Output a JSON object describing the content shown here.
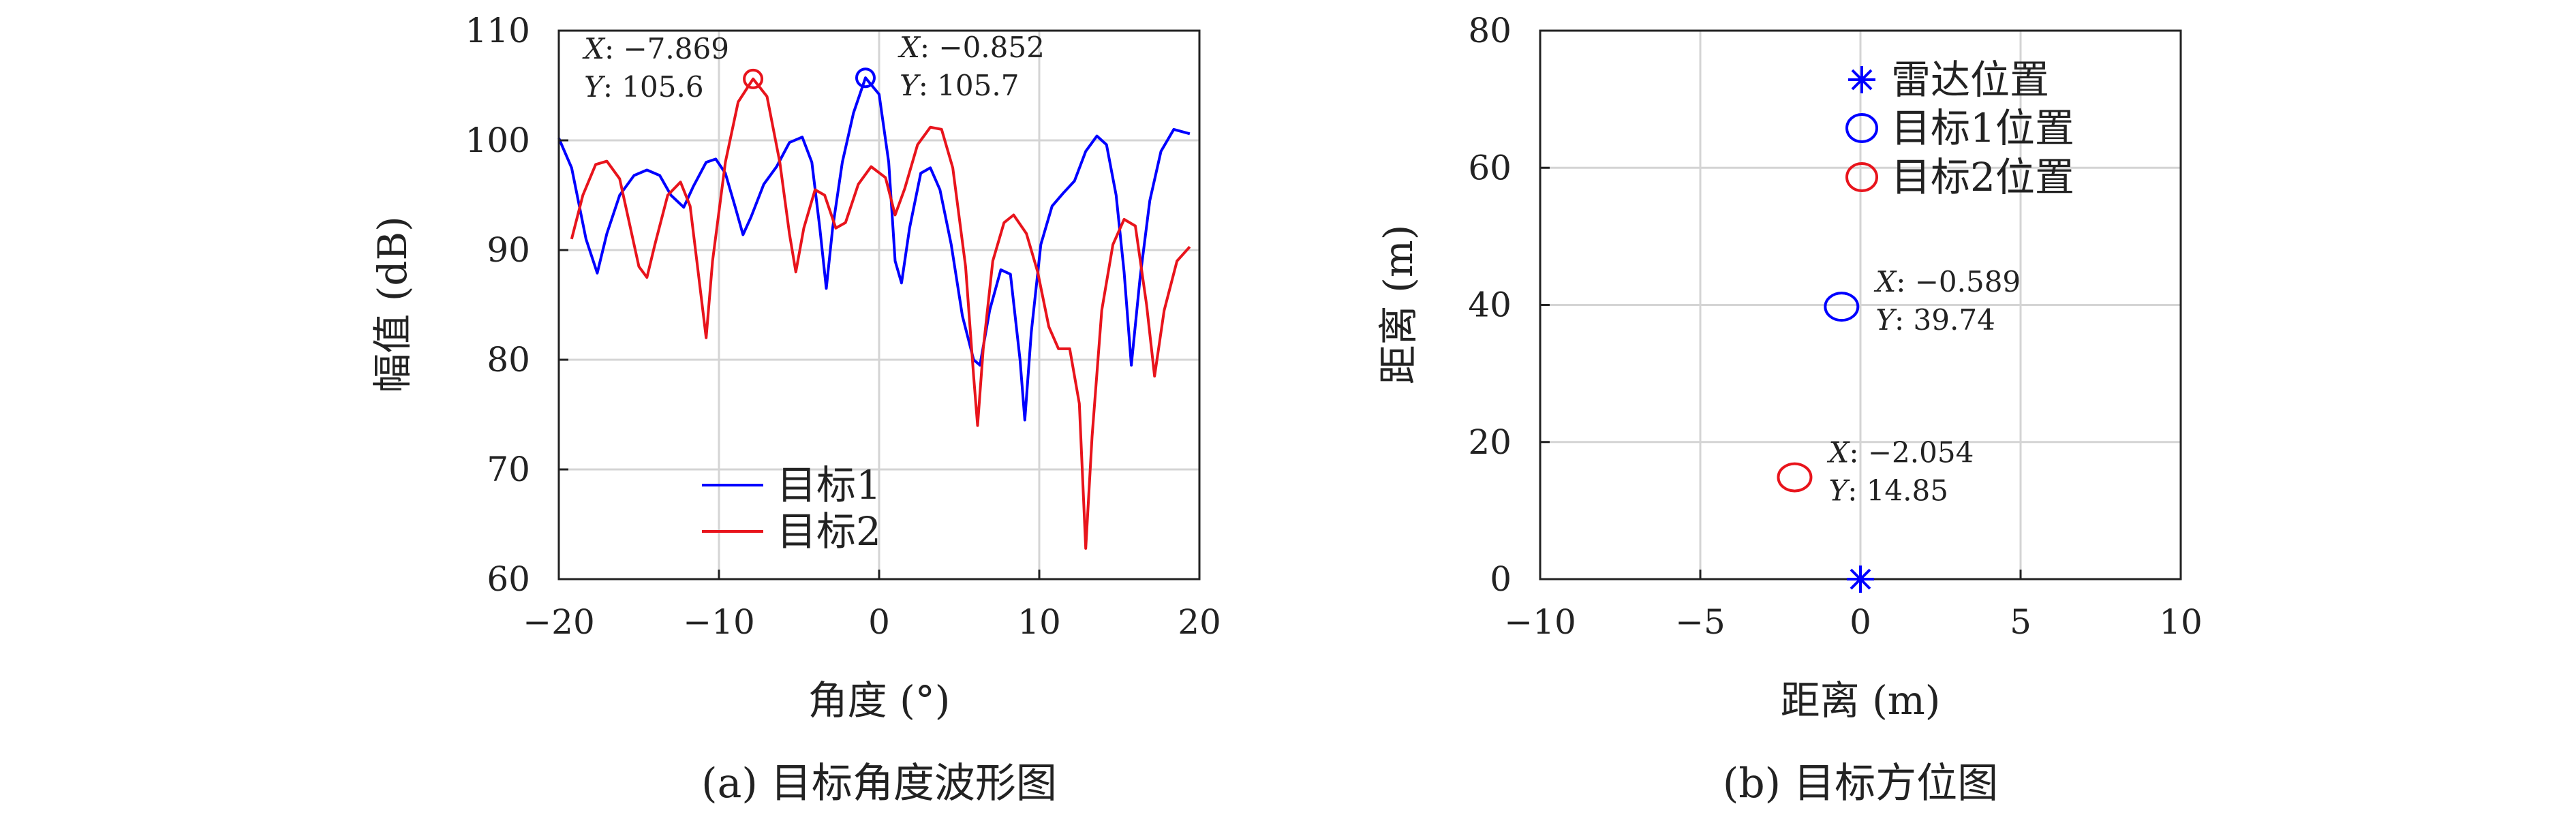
{
  "colors": {
    "series1": "#0000ff",
    "series2": "#e8141c",
    "grid": "#d4d4d4",
    "axis": "#222222"
  },
  "chart_data": [
    {
      "type": "line",
      "caption": "(a) 目标角度波形图",
      "xlabel": "角度 (°)",
      "ylabel": "幅值 (dB)",
      "xlim": [
        -20,
        20
      ],
      "ylim": [
        60,
        110
      ],
      "xticks": [
        -20,
        -10,
        0,
        10,
        20
      ],
      "yticks": [
        60,
        70,
        80,
        90,
        100,
        110
      ],
      "xtick_labels": [
        "−20",
        "−10",
        "0",
        "10",
        "20"
      ],
      "ytick_labels": [
        "60",
        "70",
        "80",
        "90",
        "100",
        "110"
      ],
      "grid": true,
      "legend_position": "bottom-center",
      "series": [
        {
          "name": "目标1",
          "color": "#0000ff",
          "points": [
            [
              -20.0,
              100.2
            ],
            [
              -19.2,
              97.5
            ],
            [
              -18.3,
              91.0
            ],
            [
              -17.6,
              87.9
            ],
            [
              -17.0,
              91.5
            ],
            [
              -16.2,
              95.0
            ],
            [
              -15.3,
              96.8
            ],
            [
              -14.5,
              97.3
            ],
            [
              -13.7,
              96.8
            ],
            [
              -13.0,
              95.0
            ],
            [
              -12.2,
              93.9
            ],
            [
              -11.6,
              95.8
            ],
            [
              -10.8,
              98.0
            ],
            [
              -10.2,
              98.3
            ],
            [
              -9.6,
              97.0
            ],
            [
              -9.0,
              94.0
            ],
            [
              -8.5,
              91.4
            ],
            [
              -8.0,
              93.0
            ],
            [
              -7.2,
              96.0
            ],
            [
              -6.4,
              97.6
            ],
            [
              -5.6,
              99.8
            ],
            [
              -4.8,
              100.3
            ],
            [
              -4.2,
              98.0
            ],
            [
              -3.7,
              92.0
            ],
            [
              -3.3,
              86.5
            ],
            [
              -2.9,
              92.0
            ],
            [
              -2.3,
              98.0
            ],
            [
              -1.6,
              102.5
            ],
            [
              -0.852,
              105.7
            ],
            [
              0.0,
              104.2
            ],
            [
              0.6,
              98.0
            ],
            [
              1.0,
              89.0
            ],
            [
              1.4,
              87.0
            ],
            [
              1.9,
              92.0
            ],
            [
              2.6,
              97.0
            ],
            [
              3.2,
              97.5
            ],
            [
              3.8,
              95.5
            ],
            [
              4.5,
              90.5
            ],
            [
              5.2,
              84.0
            ],
            [
              5.9,
              80.0
            ],
            [
              6.3,
              79.5
            ],
            [
              6.9,
              84.5
            ],
            [
              7.6,
              88.2
            ],
            [
              8.2,
              87.8
            ],
            [
              8.8,
              80.0
            ],
            [
              9.1,
              74.5
            ],
            [
              9.5,
              82.5
            ],
            [
              10.1,
              90.5
            ],
            [
              10.8,
              94.0
            ],
            [
              11.5,
              95.2
            ],
            [
              12.2,
              96.3
            ],
            [
              12.9,
              99.0
            ],
            [
              13.6,
              100.4
            ],
            [
              14.2,
              99.6
            ],
            [
              14.8,
              95.0
            ],
            [
              15.3,
              88.0
            ],
            [
              15.75,
              79.5
            ],
            [
              16.3,
              87.5
            ],
            [
              16.9,
              94.5
            ],
            [
              17.6,
              99.0
            ],
            [
              18.4,
              101.0
            ],
            [
              19.4,
              100.6
            ]
          ]
        },
        {
          "name": "目标2",
          "color": "#e8141c",
          "points": [
            [
              -19.2,
              91.0
            ],
            [
              -18.5,
              95.0
            ],
            [
              -17.7,
              97.8
            ],
            [
              -17.0,
              98.1
            ],
            [
              -16.2,
              96.5
            ],
            [
              -15.6,
              92.5
            ],
            [
              -15.0,
              88.5
            ],
            [
              -14.5,
              87.5
            ],
            [
              -14.0,
              90.5
            ],
            [
              -13.2,
              95.0
            ],
            [
              -12.4,
              96.2
            ],
            [
              -11.8,
              94.0
            ],
            [
              -11.3,
              88.0
            ],
            [
              -10.8,
              82.0
            ],
            [
              -10.4,
              89.0
            ],
            [
              -9.6,
              98.0
            ],
            [
              -8.8,
              103.5
            ],
            [
              -7.869,
              105.6
            ],
            [
              -7.0,
              104.0
            ],
            [
              -6.2,
              98.0
            ],
            [
              -5.6,
              91.5
            ],
            [
              -5.2,
              88.0
            ],
            [
              -4.7,
              92.0
            ],
            [
              -4.0,
              95.5
            ],
            [
              -3.4,
              95.0
            ],
            [
              -2.7,
              92.0
            ],
            [
              -2.1,
              92.5
            ],
            [
              -1.3,
              96.0
            ],
            [
              -0.5,
              97.6
            ],
            [
              0.4,
              96.6
            ],
            [
              1.0,
              93.2
            ],
            [
              1.6,
              95.6
            ],
            [
              2.4,
              99.6
            ],
            [
              3.2,
              101.2
            ],
            [
              3.9,
              101.0
            ],
            [
              4.6,
              97.5
            ],
            [
              5.4,
              88.5
            ],
            [
              5.9,
              78.5
            ],
            [
              6.15,
              74.0
            ],
            [
              6.5,
              81.0
            ],
            [
              7.1,
              89.0
            ],
            [
              7.8,
              92.5
            ],
            [
              8.4,
              93.2
            ],
            [
              9.2,
              91.5
            ],
            [
              9.9,
              88.0
            ],
            [
              10.6,
              83.0
            ],
            [
              11.2,
              81.0
            ],
            [
              11.9,
              81.0
            ],
            [
              12.5,
              76.0
            ],
            [
              12.9,
              62.8
            ],
            [
              13.3,
              73.0
            ],
            [
              13.9,
              84.5
            ],
            [
              14.6,
              90.5
            ],
            [
              15.3,
              92.8
            ],
            [
              16.0,
              92.2
            ],
            [
              16.7,
              85.0
            ],
            [
              17.2,
              78.5
            ],
            [
              17.8,
              84.5
            ],
            [
              18.6,
              89.0
            ],
            [
              19.4,
              90.3
            ]
          ]
        }
      ],
      "annotations": [
        {
          "x": -7.869,
          "y": 105.6,
          "x_label": "X",
          "x_text": ": −7.869",
          "y_label": "Y",
          "y_text": ": 105.6",
          "color": "#e8141c"
        },
        {
          "x": -0.852,
          "y": 105.7,
          "x_label": "X",
          "x_text": ": −0.852",
          "y_label": "Y",
          "y_text": ": 105.7",
          "color": "#0000ff"
        }
      ]
    },
    {
      "type": "scatter",
      "caption": "(b) 目标方位图",
      "xlabel": "距离 (m)",
      "ylabel": "距离 (m)",
      "xlim": [
        -10,
        10
      ],
      "ylim": [
        0,
        80
      ],
      "xticks": [
        -10,
        -5,
        0,
        5,
        10
      ],
      "yticks": [
        0,
        20,
        40,
        60,
        80
      ],
      "xtick_labels": [
        "−10",
        "−5",
        "0",
        "5",
        "10"
      ],
      "ytick_labels": [
        "0",
        "20",
        "40",
        "60",
        "80"
      ],
      "grid": true,
      "legend_position": "top-right",
      "series": [
        {
          "name": "雷达位置",
          "marker": "asterisk",
          "color": "#0000ff",
          "points": [
            [
              0,
              0
            ]
          ]
        },
        {
          "name": "目标1位置",
          "marker": "circle",
          "color": "#0000ff",
          "points": [
            [
              -0.589,
              39.74
            ]
          ]
        },
        {
          "name": "目标2位置",
          "marker": "circle",
          "color": "#e8141c",
          "points": [
            [
              -2.054,
              14.85
            ]
          ]
        }
      ],
      "annotations": [
        {
          "x": -0.589,
          "y": 39.74,
          "x_label": "X",
          "x_text": ": −0.589",
          "y_label": "Y",
          "y_text": ": 39.74"
        },
        {
          "x": -2.054,
          "y": 14.85,
          "x_label": "X",
          "x_text": ": −2.054",
          "y_label": "Y",
          "y_text": ": 14.85"
        }
      ]
    }
  ]
}
